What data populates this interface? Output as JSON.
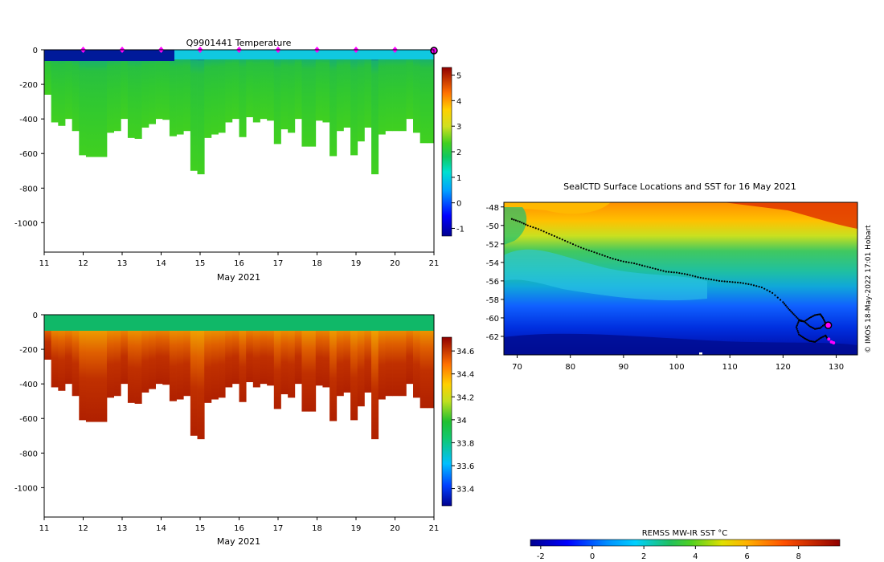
{
  "chart_data": [
    {
      "type": "heatmap",
      "title": "Q9901441  Temperature",
      "xlabel": "May 2021",
      "ylabel": "",
      "x_ticks": [
        "11",
        "12",
        "13",
        "14",
        "15",
        "16",
        "17",
        "18",
        "19",
        "20",
        "21"
      ],
      "xlim": [
        11,
        21
      ],
      "ylim": [
        -1170,
        0
      ],
      "y_ticks": [
        "0",
        "-200",
        "-400",
        "-600",
        "-800",
        "-1000"
      ],
      "colorbar": {
        "ticks": [
          "-1",
          "0",
          "1",
          "2",
          "3",
          "4",
          "5"
        ],
        "range": [
          -1.3,
          5.3
        ]
      },
      "surface_markers_days": [
        12,
        13,
        14,
        15,
        16,
        17,
        18,
        19,
        20
      ],
      "current_position_day": 21,
      "profile_max_depth_m": [
        -260,
        -420,
        -440,
        -400,
        -470,
        -610,
        -620,
        -620,
        -620,
        -480,
        -470,
        -400,
        -510,
        -515,
        -450,
        -430,
        -400,
        -405,
        -500,
        -490,
        -470,
        -700,
        -720,
        -510,
        -490,
        -480,
        -420,
        -400,
        -505,
        -390,
        -420,
        -400,
        -410,
        -545,
        -460,
        -480,
        -400,
        -560,
        -560,
        -410,
        -420,
        -615,
        -470,
        -450,
        -610,
        -530,
        -450,
        -720,
        -490,
        -470,
        -470,
        -470,
        -400,
        -480,
        -540,
        -540
      ],
      "surface_temperature_c": -0.8,
      "mid_temperature_c": 1.8,
      "deep_temperature_c": 2.1
    },
    {
      "type": "heatmap",
      "title": "",
      "xlabel": "May 2021",
      "x_ticks": [
        "11",
        "12",
        "13",
        "14",
        "15",
        "16",
        "17",
        "18",
        "19",
        "20",
        "21"
      ],
      "xlim": [
        11,
        21
      ],
      "ylim": [
        -1170,
        0
      ],
      "y_ticks": [
        "0",
        "-200",
        "-400",
        "-600",
        "-800",
        "-1000"
      ],
      "colorbar": {
        "ticks": [
          "33.4",
          "33.6",
          "33.8",
          "34",
          "34.2",
          "34.4",
          "34.6"
        ],
        "range": [
          33.25,
          34.72
        ]
      },
      "surface_salinity": 33.9,
      "deep_salinity": 34.68
    },
    {
      "type": "map",
      "title": "SealCTD Surface Locations and SST for 16 May 2021",
      "x_ticks": [
        "70",
        "80",
        "90",
        "100",
        "110",
        "120",
        "130"
      ],
      "y_ticks": [
        "-48",
        "-50",
        "-52",
        "-54",
        "-56",
        "-58",
        "-60",
        "-62"
      ],
      "xlim": [
        67.5,
        134
      ],
      "ylim": [
        -64,
        -47.5
      ],
      "track_lon": [
        69,
        70.5,
        72,
        74,
        76,
        78,
        80,
        82,
        84,
        86,
        88,
        90,
        92,
        94,
        96,
        98,
        100,
        102,
        104,
        106,
        108,
        110,
        112,
        114,
        116,
        118,
        120,
        121,
        122,
        123,
        124,
        125,
        126,
        127,
        127.5,
        128,
        127,
        126,
        125,
        124,
        123,
        122.5,
        123,
        124,
        125,
        126,
        127,
        128,
        128.5
      ],
      "track_lat": [
        -49.3,
        -49.6,
        -50,
        -50.4,
        -50.9,
        -51.4,
        -51.9,
        -52.4,
        -52.8,
        -53.2,
        -53.6,
        -53.9,
        -54.1,
        -54.4,
        -54.7,
        -55,
        -55.1,
        -55.3,
        -55.6,
        -55.8,
        -56,
        -56.1,
        -56.2,
        -56.4,
        -56.7,
        -57.3,
        -58.3,
        -59,
        -59.6,
        -60.2,
        -60.4,
        -60,
        -59.7,
        -59.6,
        -60,
        -60.6,
        -61.1,
        -61.2,
        -60.9,
        -60.4,
        -60.3,
        -61,
        -61.8,
        -62.2,
        -62.5,
        -62.6,
        -62.2,
        -61.9,
        -62.4
      ],
      "current_position": [
        128.5,
        -60.8
      ],
      "current_lon": 128.5,
      "current_lat": -60.8,
      "side_label": "© IMOS 18-May-2022 17:01 Hobart",
      "colorbar": {
        "label": "REMSS MW-IR SST °C",
        "ticks": [
          "-2",
          "0",
          "2",
          "4",
          "6",
          "8"
        ],
        "range": [
          -2.4,
          9.6
        ]
      }
    }
  ]
}
